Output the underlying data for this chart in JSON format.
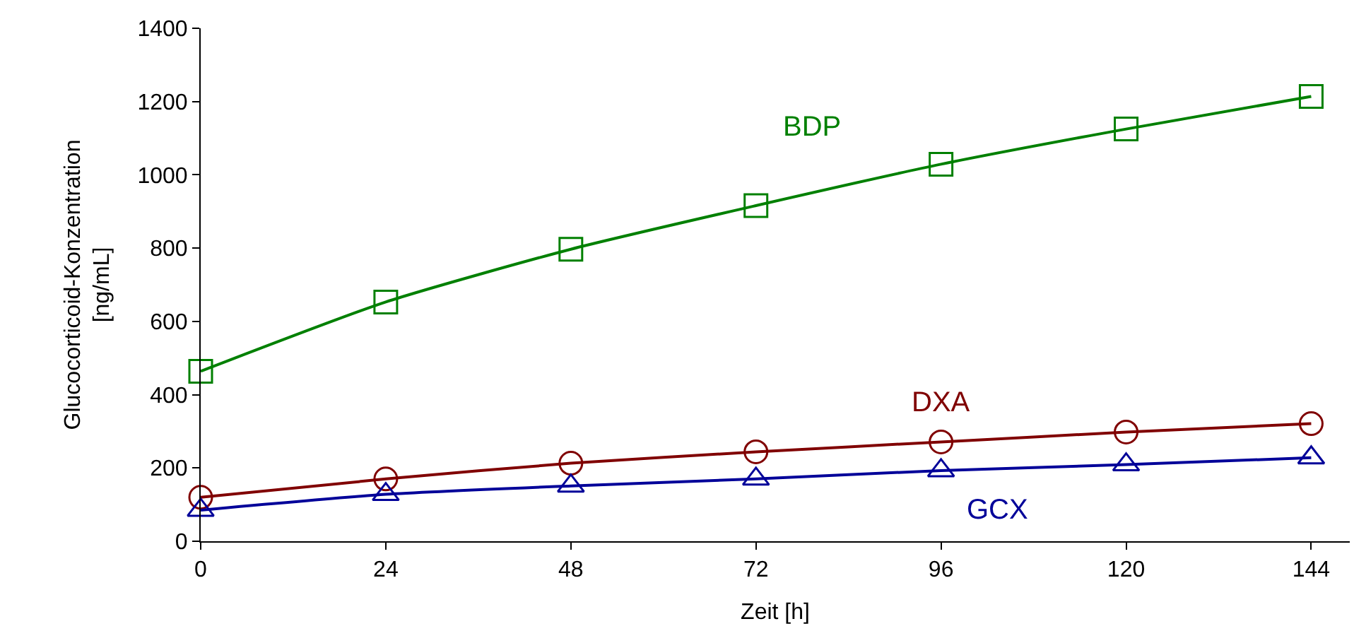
{
  "chart_data": {
    "type": "line",
    "xlabel": "Zeit [h]",
    "ylabel": "Glucocorticoid-Konzentration\n[ng/mL]",
    "x": [
      0,
      24,
      48,
      72,
      96,
      120,
      144
    ],
    "xlim": [
      0,
      149
    ],
    "xticks": [
      0,
      24,
      48,
      72,
      96,
      120,
      144
    ],
    "ylim": [
      0,
      1400
    ],
    "yticks": [
      0,
      200,
      400,
      600,
      800,
      1000,
      1200,
      1400
    ],
    "legend": false,
    "series": [
      {
        "name": "BDP",
        "color": "#008000",
        "marker": "square",
        "values": [
          464,
          653,
          797,
          916,
          1029,
          1125,
          1214
        ]
      },
      {
        "name": "DXA",
        "color": "#800000",
        "marker": "circle",
        "values": [
          120,
          170,
          213,
          244,
          271,
          298,
          321
        ]
      },
      {
        "name": "GCX",
        "color": "#000099",
        "marker": "triangle",
        "values": [
          85,
          128,
          151,
          170,
          193,
          209,
          228
        ]
      }
    ]
  }
}
